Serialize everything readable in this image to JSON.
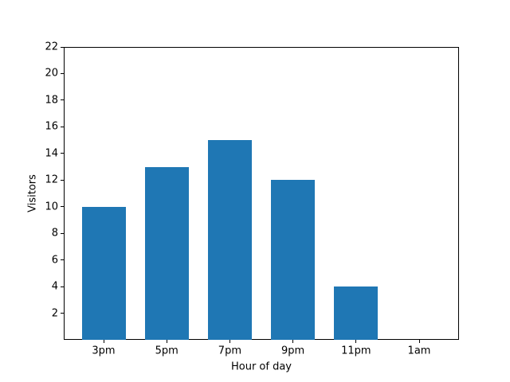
{
  "chart_data": {
    "type": "bar",
    "categories": [
      "3pm",
      "5pm",
      "7pm",
      "9pm",
      "11pm",
      "1am"
    ],
    "values": [
      10,
      13,
      15,
      12,
      4,
      0
    ],
    "xlabel": "Hour of day",
    "ylabel": "Visitors",
    "ylim": [
      0,
      22
    ],
    "yticks": [
      2,
      4,
      6,
      8,
      10,
      12,
      14,
      16,
      18,
      20,
      22
    ],
    "bar_color": "#1f77b4",
    "spine_color": "#000000",
    "background_color": "#ffffff",
    "grid": false,
    "legend": "none",
    "title": ""
  }
}
